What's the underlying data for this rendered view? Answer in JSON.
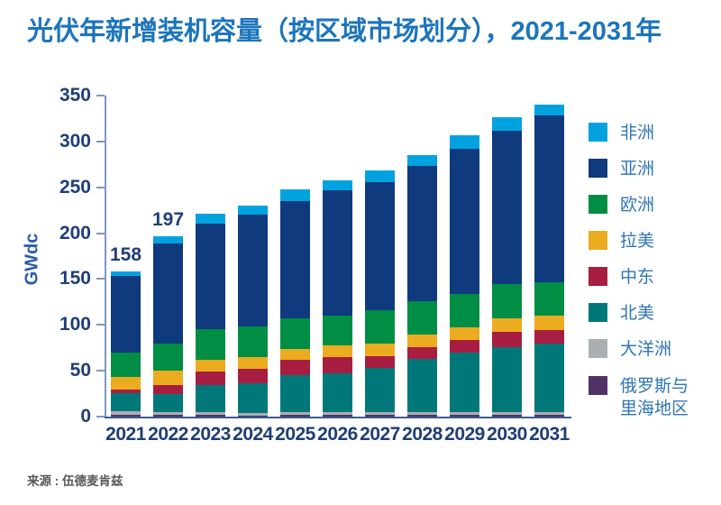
{
  "title": "光伏年新增装机容量（按区域市场划分），2021-2031年",
  "source": "来源 : 伍德麦肯兹",
  "colors": {
    "title_text": "#1C75BC",
    "axis_text": "#1F3E75",
    "axis_line": "#7E97BF",
    "baseline": "#3B5C8F",
    "ylabel_text": "#2B5CA8",
    "legend_text": "#2E75B5",
    "source_text": "#58595B"
  },
  "chart_data": {
    "type": "bar",
    "stacked": true,
    "title": "光伏年新增装机容量（按区域市场划分），2021-2031年",
    "xlabel": "",
    "ylabel": "GWdc",
    "ylim": [
      0,
      350
    ],
    "yticks": [
      0,
      50,
      100,
      150,
      200,
      250,
      300,
      350
    ],
    "grid": false,
    "legend_position": "right",
    "categories": [
      "2021",
      "2022",
      "2023",
      "2024",
      "2025",
      "2026",
      "2027",
      "2028",
      "2029",
      "2030",
      "2031"
    ],
    "series": [
      {
        "name": "俄罗斯与里海地区",
        "color": "#503268",
        "values": [
          1.5,
          1.5,
          1.5,
          1,
          1.5,
          1.5,
          1.5,
          1.5,
          1.5,
          1.5,
          1.5
        ]
      },
      {
        "name": "大洋洲",
        "color": "#ABAFB2",
        "values": [
          4,
          3,
          3,
          2.5,
          3,
          3,
          3,
          3,
          3,
          3,
          3
        ]
      },
      {
        "name": "北美",
        "color": "#00787A",
        "values": [
          20,
          20,
          30,
          33,
          41,
          43,
          48.5,
          58.5,
          65,
          71.5,
          75
        ]
      },
      {
        "name": "中东",
        "color": "#A81E42",
        "values": [
          4,
          10,
          15,
          15.5,
          16,
          17,
          13,
          13,
          14,
          16,
          15
        ]
      },
      {
        "name": "拉美",
        "color": "#ECAC20",
        "values": [
          14,
          16,
          12.5,
          12.5,
          12.5,
          13,
          14,
          13.5,
          14,
          15,
          16
        ]
      },
      {
        "name": "欧洲",
        "color": "#008D44",
        "values": [
          26,
          29,
          33,
          34,
          33,
          33,
          36,
          36,
          36,
          38,
          36.5
        ]
      },
      {
        "name": "亚洲",
        "color": "#0F3A7D",
        "values": [
          84,
          109,
          115,
          122,
          128,
          136,
          140,
          148,
          159,
          167,
          181.5
        ]
      },
      {
        "name": "非洲",
        "color": "#00A3E0",
        "values": [
          5,
          8.5,
          11,
          10,
          12.5,
          11,
          12,
          12,
          14,
          14,
          12
        ]
      }
    ],
    "bar_labels": {
      "2021": "158",
      "2022": "197"
    },
    "legend": [
      "非洲",
      "亚洲",
      "欧洲",
      "拉美",
      "中东",
      "北美",
      "大洋洲",
      "俄罗斯与里海地区"
    ],
    "totals": [
      158,
      197,
      221,
      230,
      248,
      258,
      268,
      286,
      306,
      326,
      340
    ]
  }
}
